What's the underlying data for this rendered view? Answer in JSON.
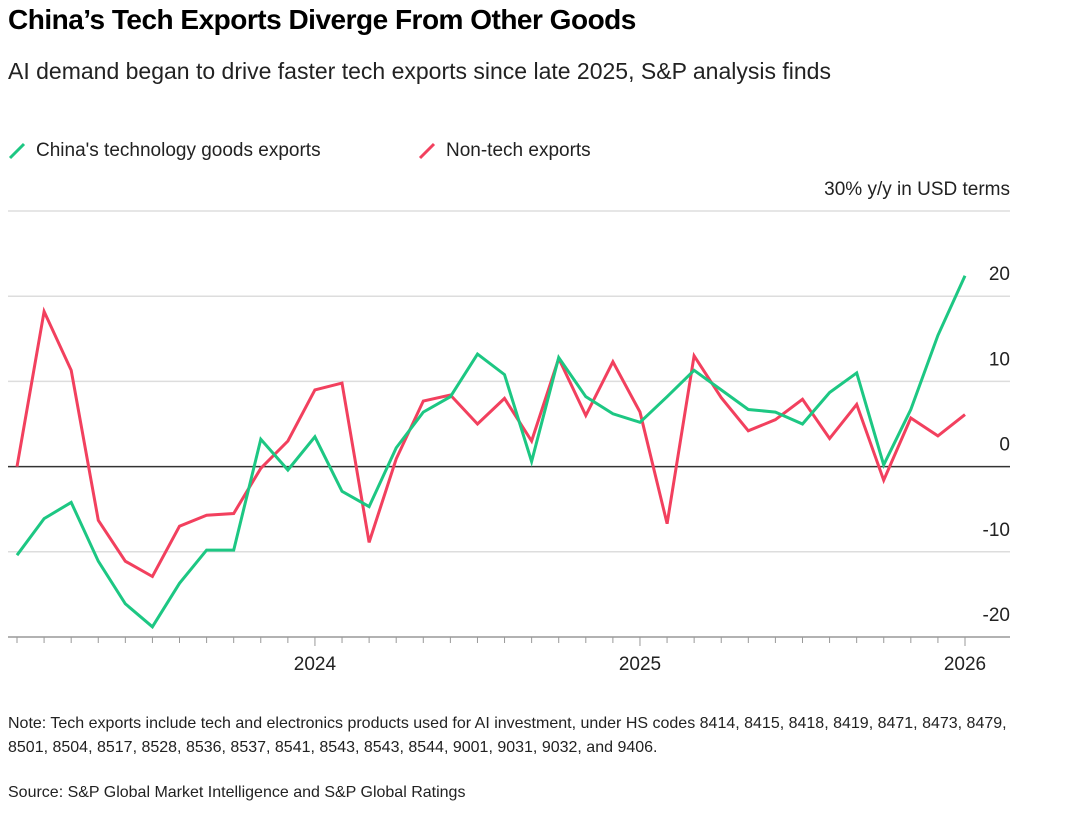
{
  "chart_data": {
    "type": "line",
    "title": "China’s Tech Exports Diverge From Other Goods",
    "subtitle": "AI demand began to drive faster tech exports since late 2025, S&P analysis finds",
    "note": "Note: Tech exports include tech and electronics products used for AI investment, under HS codes 8414, 8415, 8418, 8419, 8471, 8473, 8479, 8501, 8504, 8517, 8528, 8536, 8537, 8541, 8543, 8543, 8544, 9001, 9031, 9032, and 9406.",
    "source": "Source: S&P Global Market Intelligence and S&P Global Ratings",
    "categories": [
      null,
      null,
      null,
      null,
      null,
      null,
      null,
      null,
      null,
      null,
      null,
      "2024",
      null,
      null,
      null,
      null,
      null,
      null,
      null,
      null,
      null,
      null,
      null,
      "2025",
      null,
      null,
      null,
      null,
      null,
      null,
      null,
      null,
      null,
      null,
      null,
      "2026"
    ],
    "series": [
      {
        "name": "China's technology goods exports",
        "color": "#1dc783",
        "values": [
          -10.4,
          -6.1,
          -4.2,
          -11.1,
          -16.1,
          -18.8,
          -13.7,
          -9.8,
          -9.8,
          3.2,
          -0.4,
          3.5,
          -2.9,
          -4.7,
          2.2,
          6.4,
          8.2,
          13.2,
          10.8,
          0.6,
          12.8,
          8.2,
          6.2,
          5.2,
          8.2,
          11.3,
          9.0,
          6.7,
          6.4,
          5.0,
          8.7,
          11.0,
          0.2,
          6.7,
          15.4,
          22.4
        ]
      },
      {
        "name": "Non-tech exports",
        "color": "#f2405e",
        "values": [
          0,
          18.2,
          11.3,
          -6.3,
          -11.1,
          -12.9,
          -7.0,
          -5.7,
          -5.5,
          -0.2,
          3.0,
          9.0,
          9.8,
          -8.9,
          0.9,
          7.7,
          8.4,
          5.0,
          8.0,
          3.0,
          12.7,
          6.0,
          12.3,
          6.4,
          -6.7,
          13.0,
          8.1,
          4.2,
          5.5,
          7.9,
          3.3,
          7.3,
          -1.6,
          5.7,
          3.6,
          6.1
        ]
      }
    ],
    "ylim": [
      -20,
      30
    ],
    "yticks": [
      -20,
      -10,
      0,
      10,
      20,
      {
        "value": 30,
        "label": "30% y/y in USD terms"
      }
    ],
    "grid": true
  }
}
